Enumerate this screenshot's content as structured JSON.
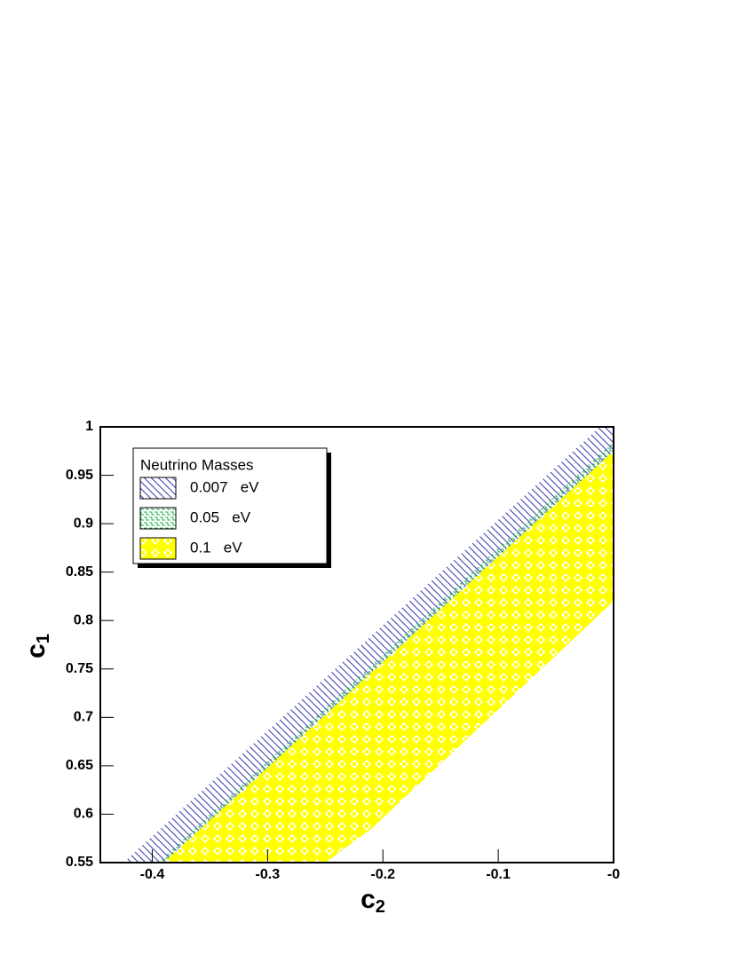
{
  "chart_data": {
    "type": "region",
    "x_label": {
      "text": "c",
      "subscript": "2"
    },
    "y_label": {
      "text": "c",
      "subscript": "1"
    },
    "legend_title": "Neutrino Masses",
    "legend_position": "upper left",
    "xlim": [
      -0.445,
      0
    ],
    "ylim": [
      0.55,
      1
    ],
    "xticks": [
      -0.4,
      -0.3,
      -0.2,
      -0.1,
      {
        "value": 0,
        "label": "-0"
      }
    ],
    "yticks": [
      0.55,
      0.6,
      0.65,
      0.7,
      0.75,
      0.8,
      0.85,
      0.9,
      0.95,
      1
    ],
    "series": [
      {
        "name": "0.007   eV",
        "color": "#3b3bb0",
        "pattern": "hatch",
        "x": [
          -0.425,
          -0.012,
          0,
          0,
          -0.21,
          -0.25
        ],
        "y": [
          0.55,
          1,
          1,
          0.82,
          0.585,
          0.55
        ]
      },
      {
        "name": "0.05   eV",
        "color": "#22b24c",
        "pattern": "mesh",
        "x": [
          -0.395,
          0,
          0,
          -0.21,
          -0.25
        ],
        "y": [
          0.55,
          0.985,
          0.82,
          0.585,
          0.55
        ]
      },
      {
        "name": "0.1   eV",
        "color": "#ffff00",
        "pattern": "checker",
        "x": [
          -0.39,
          0,
          0,
          -0.21,
          -0.25
        ],
        "y": [
          0.55,
          0.975,
          0.82,
          0.585,
          0.55
        ]
      }
    ]
  }
}
